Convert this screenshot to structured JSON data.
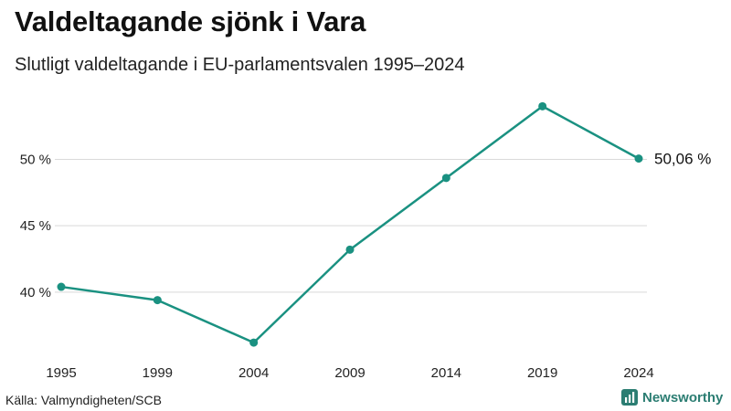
{
  "header": {
    "title": "Valdeltagande sjönk i Vara",
    "subtitle": "Slutligt valdeltagande i EU-parlamentsvalen 1995–2024"
  },
  "footer": {
    "source": "Källa: Valmyndigheten/SCB",
    "brand": "Newsworthy"
  },
  "colors": {
    "line": "#1a9181",
    "grid": "#d9d9d9",
    "brand": "#2b7d72"
  },
  "icons": {
    "brand_logo": "bar-chart-icon"
  },
  "chart_data": {
    "type": "line",
    "title": "Valdeltagande sjönk i Vara",
    "subtitle": "Slutligt valdeltagande i EU-parlamentsvalen 1995–2024",
    "xlabel": "",
    "ylabel": "",
    "x": [
      "1995",
      "1999",
      "2004",
      "2009",
      "2014",
      "2019",
      "2024"
    ],
    "series": [
      {
        "name": "Valdeltagande",
        "values": [
          40.4,
          39.4,
          36.2,
          43.2,
          48.6,
          54.0,
          50.06
        ]
      }
    ],
    "ylim": [
      33.8,
      56.5
    ],
    "yticks": [
      40,
      45,
      50
    ],
    "ytick_labels": [
      "40 %",
      "45 %",
      "50 %"
    ],
    "grid": true,
    "end_label": "50,06 %"
  }
}
